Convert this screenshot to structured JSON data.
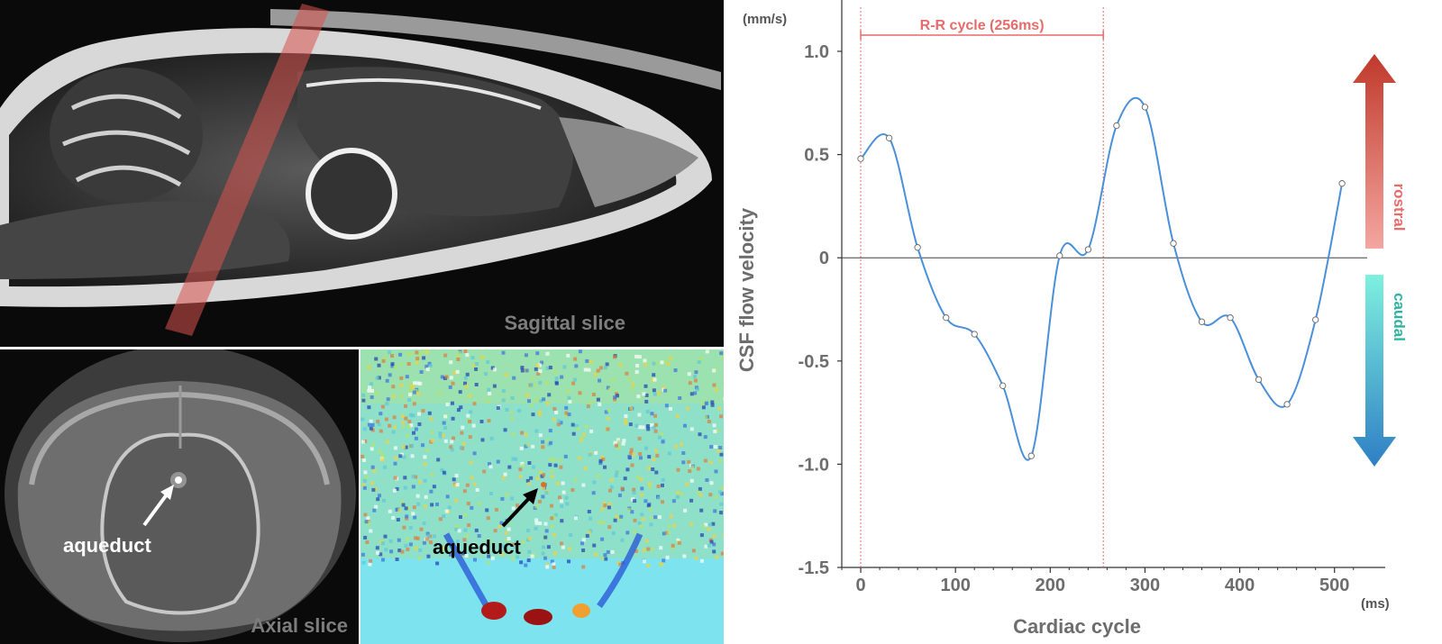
{
  "panels": {
    "sagittal": {
      "label": "Sagittal slice"
    },
    "axial": {
      "label": "Axial slice",
      "annotation": "aqueduct"
    },
    "phase_map": {
      "annotation": "aqueduct"
    }
  },
  "chart_data": {
    "type": "line",
    "title": "",
    "xlabel": "Cardiac cycle",
    "ylabel": "CSF flow velocity",
    "x_unit": "(ms)",
    "y_unit": "(mm/s)",
    "xlim": [
      -20,
      525
    ],
    "ylim": [
      -1.5,
      1.0
    ],
    "x_ticks": [
      0,
      100,
      200,
      300,
      400,
      500
    ],
    "y_ticks": [
      1.0,
      0.5,
      0,
      -0.5,
      -1.0,
      -1.5
    ],
    "x_tick_labels": [
      "0",
      "100",
      "200",
      "300",
      "400",
      "500"
    ],
    "y_tick_labels": [
      "1.0",
      "0.5",
      "0",
      "-0.5",
      "-1.0",
      "-1.5"
    ],
    "grid": false,
    "series": [
      {
        "color": "#4a90d9",
        "x": [
          0,
          30,
          60,
          90,
          120,
          150,
          180,
          210,
          240,
          270,
          300,
          330,
          360,
          390,
          420,
          450,
          480,
          508
        ],
        "y": [
          0.48,
          0.58,
          0.05,
          -0.29,
          -0.37,
          -0.62,
          -0.96,
          0.01,
          0.04,
          0.64,
          0.73,
          0.07,
          -0.31,
          -0.29,
          -0.59,
          -0.71,
          -0.3,
          0.36
        ]
      }
    ],
    "annotations": {
      "rr_cycle": {
        "label": "R-R cycle (256ms)",
        "x_start": 0,
        "x_end": 256,
        "color": "#e96a6a"
      },
      "zero_line": 0
    },
    "direction_arrows": {
      "rostral": {
        "label": "rostral",
        "color": "#e96a6a"
      },
      "caudal": {
        "label": "caudal",
        "color": "#2fb3a0"
      }
    }
  }
}
